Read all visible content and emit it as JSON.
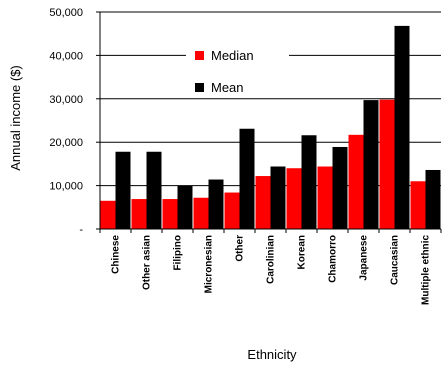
{
  "chart_data": {
    "type": "bar",
    "title": "",
    "xlabel": "Ethnicity",
    "ylabel": "Annual income ($)",
    "ylim": [
      0,
      50000
    ],
    "yticks": [
      0,
      10000,
      20000,
      30000,
      40000,
      50000
    ],
    "ytick_labels": [
      "-",
      "10,000",
      "20,000",
      "30,000",
      "40,000",
      "50,000"
    ],
    "grid": true,
    "legend_position": "upper-middle",
    "categories": [
      "Chinese",
      "Other asian",
      "Filipino",
      "Micronesian",
      "Other",
      "Carolinian",
      "Korean",
      "Chamorro",
      "Japanese",
      "Caucasian",
      "Multiple ethnic"
    ],
    "series": [
      {
        "name": "Median",
        "color": "#ff0000",
        "values": [
          6500,
          6900,
          6900,
          7200,
          8400,
          12200,
          14000,
          14400,
          21700,
          29800,
          11000
        ]
      },
      {
        "name": "Mean",
        "color": "#000000",
        "values": [
          17800,
          17800,
          10000,
          11400,
          23100,
          14400,
          21600,
          18900,
          29700,
          46800,
          13600
        ]
      }
    ]
  }
}
